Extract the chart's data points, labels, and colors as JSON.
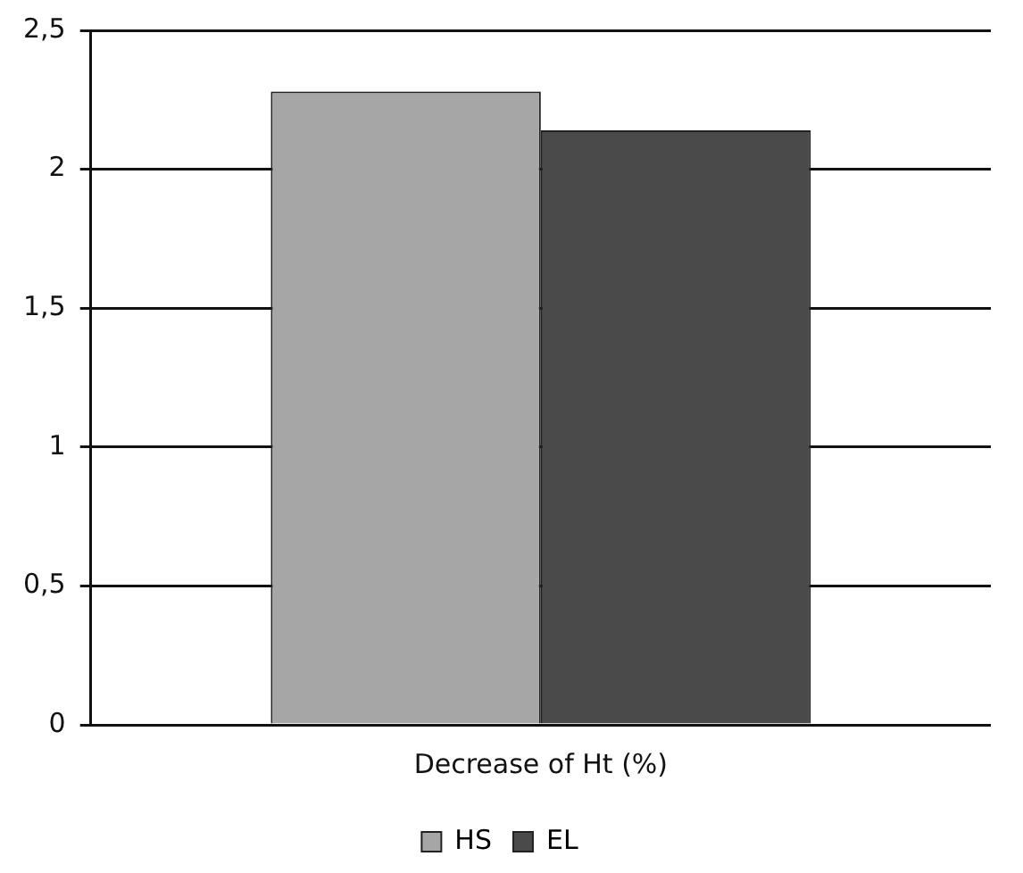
{
  "chart_data": {
    "type": "bar",
    "categories": [
      "Decrease of Ht (%)"
    ],
    "series": [
      {
        "name": "HS",
        "color": "#a6a6a6",
        "values": [
          2.28
        ]
      },
      {
        "name": "EL",
        "color": "#4a4a4a",
        "values": [
          2.14
        ]
      }
    ],
    "ylim": [
      0,
      2.5
    ],
    "yticks": [
      0,
      {
        "value": 0.5,
        "label": "0,5"
      },
      1,
      {
        "value": 1.5,
        "label": "1,5"
      },
      2,
      {
        "value": 2.5,
        "label": "2,5"
      }
    ],
    "grid": "y",
    "legend": "bottom"
  }
}
